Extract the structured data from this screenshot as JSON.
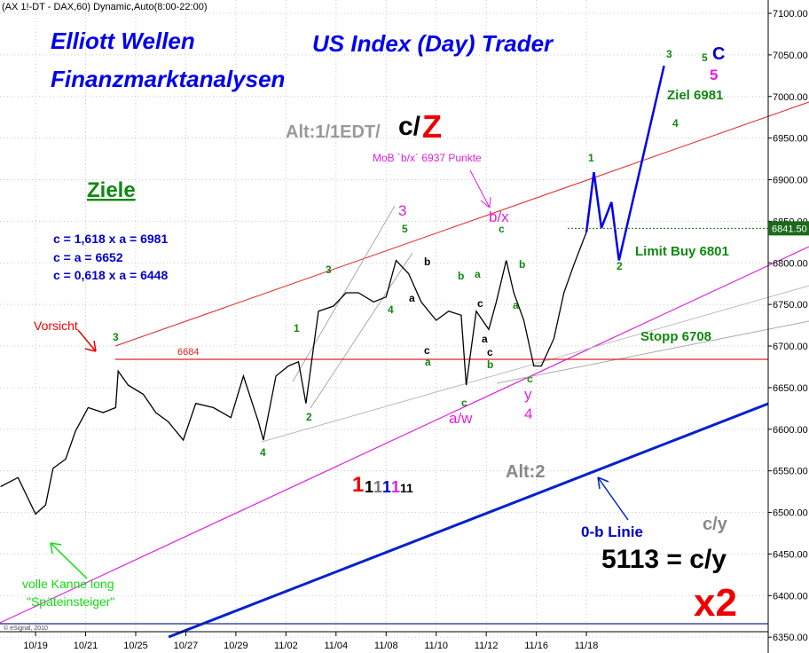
{
  "chart_data": {
    "type": "line",
    "header": "(AX 1!-DT - DAX,60) Dynamic,Auto(8:00-22:00)",
    "credit": "© eSignal, 2010",
    "grid": true,
    "xlim": [
      -1.42,
      29.26
    ],
    "ylim": [
      6331,
      7116
    ],
    "xticks": [
      {
        "value": 0,
        "label": "10/19"
      },
      {
        "value": 2,
        "label": "10/21"
      },
      {
        "value": 4,
        "label": "10/25"
      },
      {
        "value": 6,
        "label": "10/27"
      },
      {
        "value": 8,
        "label": "10/29"
      },
      {
        "value": 10,
        "label": "11/02"
      },
      {
        "value": 12,
        "label": "11/04"
      },
      {
        "value": 14,
        "label": "11/08"
      },
      {
        "value": 16,
        "label": "11/10"
      },
      {
        "value": 18,
        "label": "11/12"
      },
      {
        "value": 20,
        "label": "11/16"
      },
      {
        "value": 22,
        "label": "11/18"
      }
    ],
    "yticks": [
      {
        "value": 6350,
        "label": "6350.00"
      },
      {
        "value": 6400,
        "label": "6400.00"
      },
      {
        "value": 6450,
        "label": "6450.00"
      },
      {
        "value": 6500,
        "label": "6500.00"
      },
      {
        "value": 6550,
        "label": "6550.00"
      },
      {
        "value": 6600,
        "label": "6600.00"
      },
      {
        "value": 6650,
        "label": "6650.00"
      },
      {
        "value": 6700,
        "label": "6700.00"
      },
      {
        "value": 6750,
        "label": "6750.00"
      },
      {
        "value": 6800,
        "label": "6800.00"
      },
      {
        "value": 6850,
        "label": "6850.00"
      },
      {
        "value": 6900,
        "label": "6900.00"
      },
      {
        "value": 6950,
        "label": "6950.00"
      },
      {
        "value": 7000,
        "label": "7000.00"
      },
      {
        "value": 7050,
        "label": "7050.00"
      },
      {
        "value": 7100,
        "label": "7100.00"
      }
    ],
    "last_price": {
      "value": 6841.5,
      "label": "6841.50"
    },
    "reference_lines": [
      6684
    ],
    "series": [
      {
        "color": "#000000",
        "x": [
          -1.4,
          -0.7,
          0,
          0.4,
          0.7,
          1.2,
          1.6,
          2.1,
          2.7,
          3.2,
          3.3,
          3.7,
          4.3,
          4.8,
          5.3,
          5.9,
          6.4,
          7.1,
          7.8,
          8.3,
          8.9,
          9.1,
          9.6,
          10.1,
          10.5,
          10.8,
          11.3,
          11.9,
          12.4,
          12.9,
          13.5,
          14.0,
          14.4,
          14.9,
          15.4,
          16.0,
          16.5,
          17.0,
          17.2,
          17.6,
          18.1,
          18.4,
          18.8,
          19.1,
          19.5,
          19.9,
          20.2,
          20.7,
          21.1,
          21.5,
          22.0
        ],
        "values": [
          6531,
          6542,
          6498,
          6509,
          6553,
          6564,
          6598,
          6626,
          6620,
          6626,
          6670,
          6653,
          6642,
          6620,
          6609,
          6587,
          6631,
          6626,
          6614,
          6664,
          6609,
          6587,
          6664,
          6676,
          6681,
          6631,
          6742,
          6748,
          6764,
          6764,
          6753,
          6759,
          6803,
          6787,
          6753,
          6731,
          6742,
          6737,
          6653,
          6742,
          6720,
          6753,
          6803,
          6764,
          6731,
          6676,
          6676,
          6709,
          6764,
          6798,
          6837
        ]
      },
      {
        "color": "#0000ee",
        "x": [
          22.0,
          22.3,
          22.6,
          23.0,
          23.3,
          25.1
        ],
        "values": [
          6837,
          6909,
          6842,
          6873,
          6803,
          7037
        ]
      }
    ],
    "annotations": [
      "Elliott Wellen",
      "Finanzmarktanalysen",
      "US Index (Day) Trader",
      "Alt:1/1EDT/",
      "c/",
      "Z",
      "Ziele",
      "c = 1,618 x a = 6981",
      "c = a = 6652",
      "c = 0,618 x a = 6448",
      "Vorsicht",
      "MoB ´b/x´ 6937 Punkte",
      "b/x",
      "Ziel 6981",
      "Limit Buy 6801",
      "Stopp 6708",
      "Alt:2",
      "0-b Linie",
      "c/y",
      "5113 = c/y",
      "x2",
      "volle Kanne long",
      "\"Späteinsteiger\"",
      "a/w",
      "y",
      "4",
      "3",
      "C",
      "5",
      "1",
      "1",
      "1",
      "1",
      "1",
      "11",
      "3",
      "1",
      "3",
      "5",
      "4",
      "2",
      "4",
      "1",
      "2",
      "3",
      "4",
      "5",
      "b",
      "a",
      "b",
      "a",
      "a",
      "b",
      "c",
      "c",
      "c",
      "b",
      "a",
      "c",
      "c",
      "a",
      "c"
    ]
  }
}
